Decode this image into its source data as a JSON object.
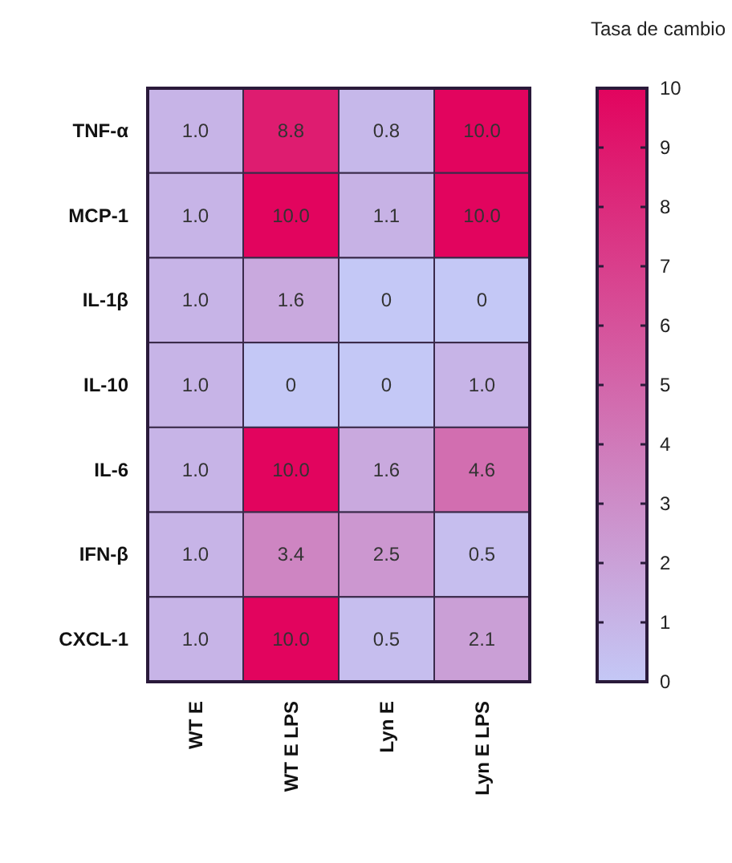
{
  "chart_data": {
    "type": "heatmap",
    "clabel": "Tasa de cambio",
    "categories": [
      "WT E",
      "WT E LPS",
      "Lyn E",
      "Lyn E LPS"
    ],
    "y_categories": [
      "TNF-α",
      "MCP-1",
      "IL-1β",
      "IL-10",
      "IL-6",
      "IFN-β",
      "CXCL-1"
    ],
    "cells": [
      [
        1.0,
        8.8,
        0.8,
        10.0
      ],
      [
        1.0,
        10.0,
        1.1,
        10.0
      ],
      [
        1.0,
        1.6,
        0,
        0
      ],
      [
        1.0,
        0,
        0,
        1.0
      ],
      [
        1.0,
        10.0,
        1.6,
        4.6
      ],
      [
        1.0,
        3.4,
        2.5,
        0.5
      ],
      [
        1.0,
        10.0,
        0.5,
        2.1
      ]
    ],
    "cell_labels": [
      [
        "1.0",
        "8.8",
        "0.8",
        "10.0"
      ],
      [
        "1.0",
        "10.0",
        "1.1",
        "10.0"
      ],
      [
        "1.0",
        "1.6",
        "0",
        "0"
      ],
      [
        "1.0",
        "0",
        "0",
        "1.0"
      ],
      [
        "1.0",
        "10.0",
        "1.6",
        "4.6"
      ],
      [
        "1.0",
        "3.4",
        "2.5",
        "0.5"
      ],
      [
        "1.0",
        "10.0",
        "0.5",
        "2.1"
      ]
    ],
    "colors": [
      "#c4c8f6",
      "#e2045e"
    ],
    "clim": [
      0,
      10
    ],
    "cticks": [
      0,
      1,
      2,
      3,
      4,
      5,
      6,
      7,
      8,
      9,
      10
    ]
  }
}
